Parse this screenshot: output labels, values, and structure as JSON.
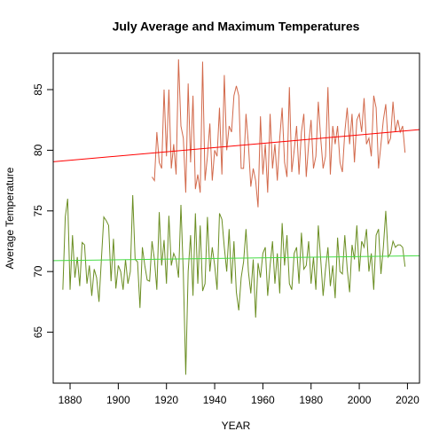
{
  "chart_data": {
    "type": "line",
    "title": "July Average and Maximum Temperatures",
    "x_label": "YEAR",
    "y_label": "Average Temperature",
    "xlim": [
      1873,
      2025
    ],
    "ylim": [
      60.8,
      88
    ],
    "xticks": [
      1880,
      1900,
      1920,
      1940,
      1960,
      1980,
      2000,
      2020
    ],
    "yticks": [
      65,
      70,
      75,
      80,
      85
    ],
    "series": [
      {
        "color": "#d2694b",
        "x": [
          1914,
          1915,
          1916,
          1917,
          1918,
          1919,
          1920,
          1921,
          1922,
          1923,
          1924,
          1925,
          1926,
          1927,
          1928,
          1929,
          1930,
          1931,
          1932,
          1933,
          1934,
          1935,
          1936,
          1937,
          1938,
          1939,
          1940,
          1941,
          1942,
          1943,
          1944,
          1945,
          1946,
          1947,
          1948,
          1949,
          1950,
          1951,
          1952,
          1953,
          1954,
          1955,
          1956,
          1957,
          1958,
          1959,
          1960,
          1961,
          1962,
          1963,
          1964,
          1965,
          1966,
          1967,
          1968,
          1969,
          1970,
          1971,
          1972,
          1973,
          1974,
          1975,
          1976,
          1977,
          1978,
          1979,
          1980,
          1981,
          1982,
          1983,
          1984,
          1985,
          1986,
          1987,
          1988,
          1989,
          1990,
          1991,
          1992,
          1993,
          1994,
          1995,
          1996,
          1997,
          1998,
          1999,
          2000,
          2001,
          2002,
          2003,
          2004,
          2005,
          2006,
          2007,
          2008,
          2009,
          2010,
          2011,
          2012,
          2013,
          2014,
          2015,
          2016,
          2017,
          2018,
          2019
        ],
        "values": [
          77.8,
          77.5,
          81.5,
          79.0,
          78.5,
          85.0,
          79.5,
          85.0,
          78.5,
          80.5,
          78.0,
          87.5,
          82.0,
          81.0,
          76.5,
          85.5,
          79.0,
          84.5,
          76.8,
          78.0,
          76.5,
          87.3,
          77.5,
          79.5,
          82.2,
          77.5,
          80.0,
          79.5,
          83.5,
          78.0,
          86.2,
          80.0,
          82.0,
          81.5,
          84.5,
          85.3,
          84.5,
          78.5,
          78.5,
          83.0,
          80.5,
          77.0,
          78.5,
          77.5,
          75.3,
          82.8,
          78.0,
          80.5,
          76.5,
          83.0,
          78.5,
          80.5,
          77.5,
          81.0,
          83.5,
          79.0,
          77.8,
          85.2,
          78.2,
          80.0,
          82.0,
          78.0,
          81.5,
          83.0,
          77.8,
          80.5,
          82.5,
          78.5,
          79.5,
          84.0,
          81.0,
          78.5,
          79.5,
          85.2,
          78.0,
          82.0,
          80.5,
          82.0,
          79.0,
          78.2,
          81.5,
          83.5,
          80.5,
          83.0,
          79.0,
          82.5,
          83.0,
          81.5,
          84.3,
          80.5,
          81.0,
          79.5,
          84.5,
          83.5,
          78.5,
          80.5,
          82.5,
          83.8,
          80.5,
          81.0,
          84.0,
          81.5,
          82.5,
          81.5,
          82.0,
          79.8
        ]
      },
      {
        "color": "#6b8e23",
        "x": [
          1877,
          1878,
          1879,
          1880,
          1881,
          1882,
          1883,
          1884,
          1885,
          1886,
          1887,
          1888,
          1889,
          1890,
          1891,
          1892,
          1893,
          1894,
          1895,
          1896,
          1897,
          1898,
          1899,
          1900,
          1901,
          1902,
          1903,
          1904,
          1905,
          1906,
          1907,
          1908,
          1909,
          1910,
          1911,
          1912,
          1913,
          1914,
          1915,
          1916,
          1917,
          1918,
          1919,
          1920,
          1921,
          1922,
          1923,
          1924,
          1925,
          1926,
          1927,
          1928,
          1929,
          1930,
          1931,
          1932,
          1933,
          1934,
          1935,
          1936,
          1937,
          1938,
          1939,
          1940,
          1941,
          1942,
          1943,
          1944,
          1945,
          1946,
          1947,
          1948,
          1949,
          1950,
          1951,
          1952,
          1953,
          1954,
          1955,
          1956,
          1957,
          1958,
          1959,
          1960,
          1961,
          1962,
          1963,
          1964,
          1965,
          1966,
          1967,
          1968,
          1969,
          1970,
          1971,
          1972,
          1973,
          1974,
          1975,
          1976,
          1977,
          1978,
          1979,
          1980,
          1981,
          1982,
          1983,
          1984,
          1985,
          1986,
          1987,
          1988,
          1989,
          1990,
          1991,
          1992,
          1993,
          1994,
          1995,
          1996,
          1997,
          1998,
          1999,
          2000,
          2001,
          2002,
          2003,
          2004,
          2005,
          2006,
          2007,
          2008,
          2009,
          2010,
          2011,
          2012,
          2013,
          2014,
          2015,
          2016,
          2017,
          2018,
          2019
        ],
        "values": [
          68.5,
          74.5,
          76.0,
          68.5,
          73.0,
          69.5,
          71.2,
          68.8,
          72.4,
          72.2,
          69.0,
          70.5,
          68.0,
          70.2,
          69.5,
          67.5,
          71.0,
          74.5,
          74.2,
          73.8,
          69.2,
          72.7,
          68.6,
          70.5,
          70.0,
          68.5,
          71.0,
          69.0,
          70.0,
          76.3,
          71.0,
          70.8,
          67.0,
          72.0,
          70.5,
          69.3,
          69.2,
          72.5,
          71.0,
          68.5,
          74.9,
          70.5,
          72.6,
          69.0,
          74.6,
          70.5,
          71.5,
          71.0,
          69.5,
          75.5,
          69.8,
          61.5,
          70.0,
          73.0,
          68.0,
          74.8,
          69.0,
          73.8,
          68.4,
          69.0,
          74.5,
          70.0,
          72.0,
          70.5,
          68.5,
          74.8,
          74.3,
          72.0,
          70.0,
          73.5,
          69.0,
          72.5,
          68.3,
          66.8,
          69.5,
          70.8,
          73.5,
          70.0,
          68.2,
          71.0,
          66.2,
          70.7,
          69.5,
          71.5,
          72.0,
          68.0,
          70.5,
          72.5,
          69.0,
          71.5,
          68.2,
          74.0,
          70.5,
          73.0,
          69.0,
          68.5,
          71.5,
          72.0,
          69.0,
          73.2,
          70.2,
          70.5,
          72.5,
          69.0,
          71.2,
          68.5,
          73.8,
          71.0,
          68.0,
          70.2,
          72.0,
          68.8,
          70.5,
          67.8,
          72.8,
          70.0,
          69.8,
          73.0,
          70.2,
          68.3,
          72.2,
          71.0,
          73.8,
          70.0,
          72.5,
          72.0,
          73.5,
          70.0,
          71.5,
          68.5,
          73.0,
          73.5,
          69.8,
          72.0,
          75.0,
          71.2,
          71.5,
          72.5,
          72.0,
          72.2,
          72.2,
          72.0,
          70.4
        ]
      },
      {
        "color": "#ff0000",
        "x": [
          1873,
          2025
        ],
        "values": [
          79.05,
          81.7
        ]
      },
      {
        "color": "#44dd44",
        "x": [
          1873,
          2025
        ],
        "values": [
          70.9,
          71.3
        ]
      }
    ]
  }
}
